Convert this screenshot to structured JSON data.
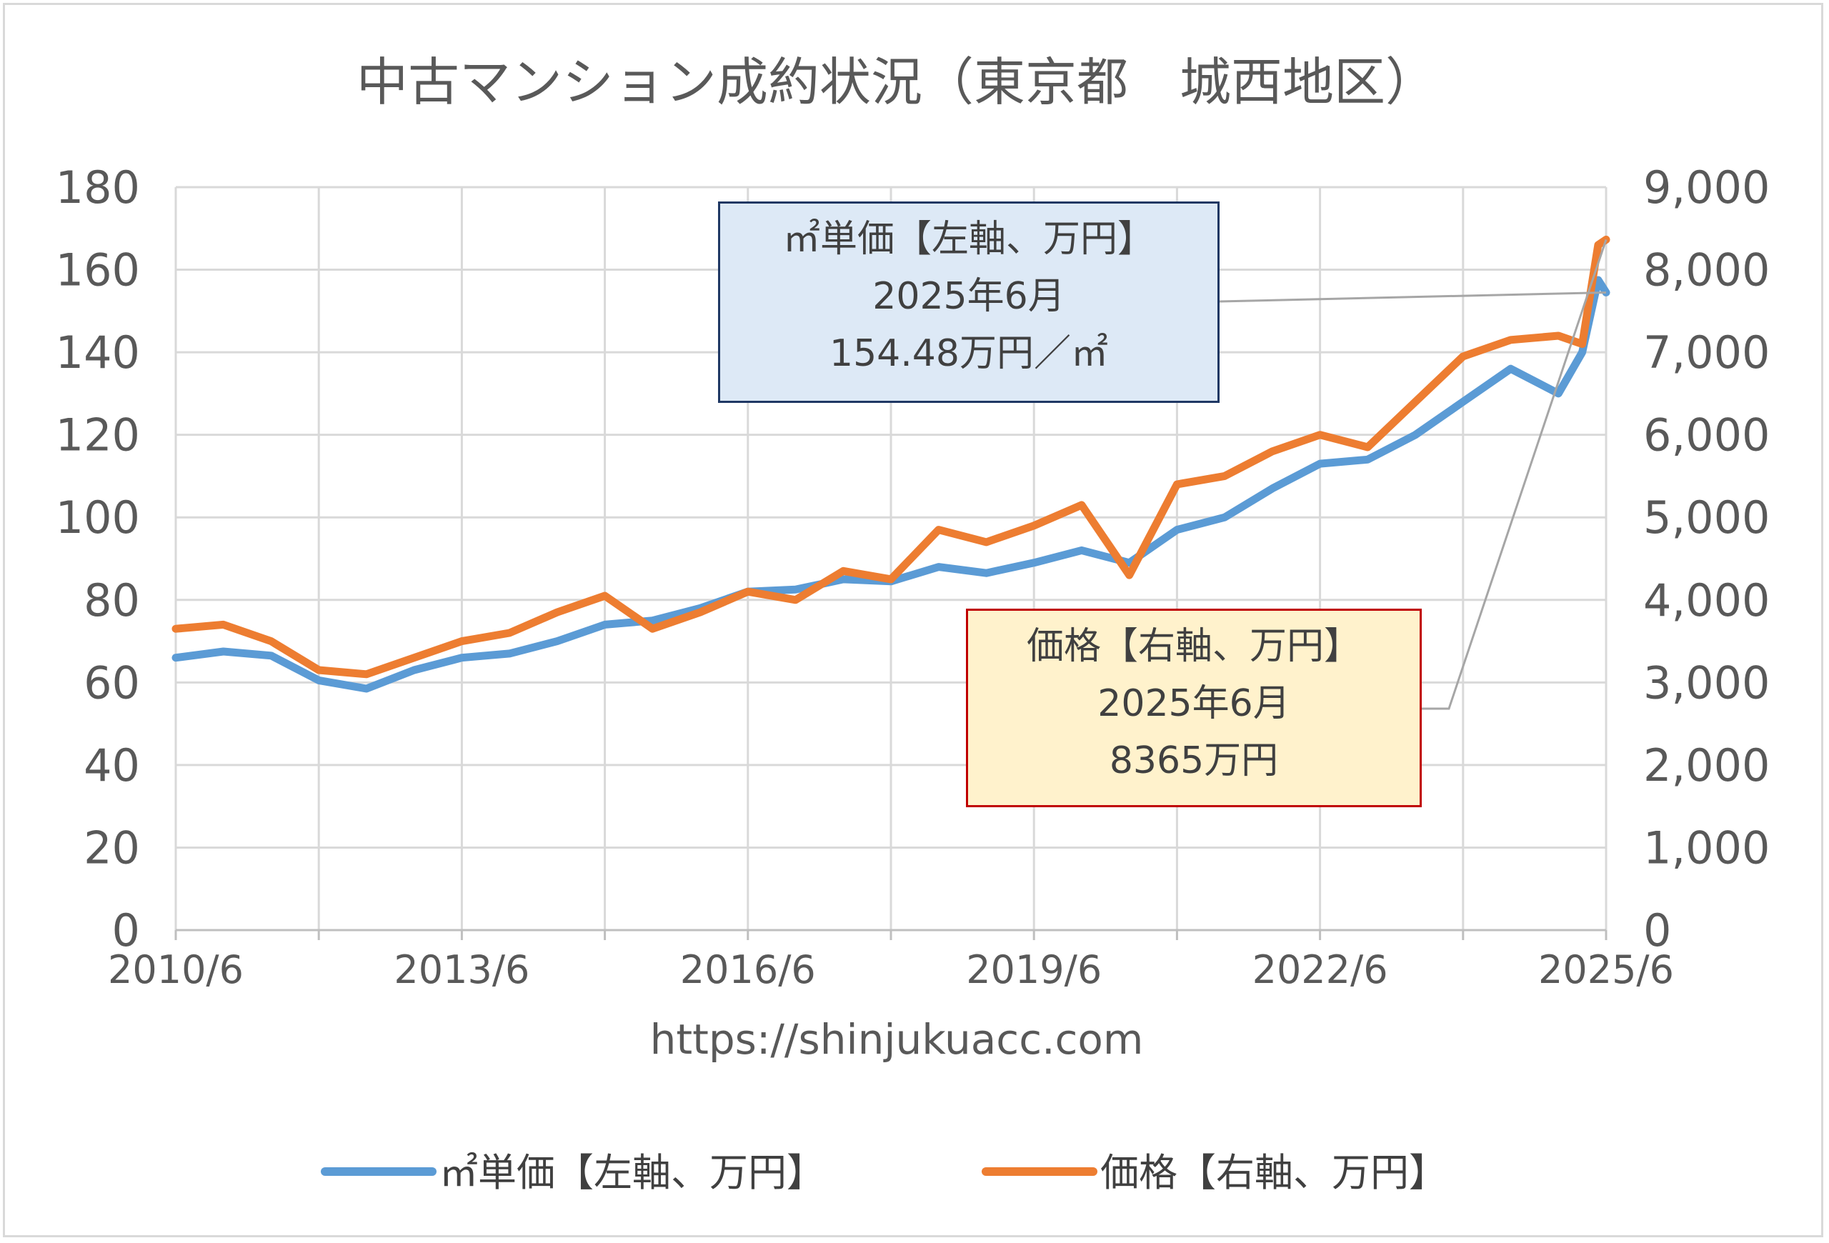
{
  "chart_data": {
    "type": "line",
    "title": "中古マンション成約状況（東京都　城西地区）",
    "watermark": "https://shinjukuacc.com",
    "x_tick_labels": [
      "2010/6",
      "2013/6",
      "2016/6",
      "2019/6",
      "2022/6",
      "2025/6"
    ],
    "x_range": [
      "2010/6",
      "2025/6"
    ],
    "y_left": {
      "ylim": [
        0,
        180
      ],
      "ticks": [
        "0",
        "20",
        "40",
        "60",
        "80",
        "100",
        "120",
        "140",
        "160",
        "180"
      ]
    },
    "y_right": {
      "ylim": [
        0,
        9000
      ],
      "ticks": [
        "0",
        "1,000",
        "2,000",
        "3,000",
        "4,000",
        "5,000",
        "6,000",
        "7,000",
        "8,000",
        "9,000"
      ]
    },
    "grid": true,
    "legend_position": "bottom",
    "series": [
      {
        "name": "㎡単価【左軸、万円】",
        "axis": "left",
        "color": "#5b9bd5",
        "points": [
          [
            "2010/6",
            66
          ],
          [
            "2010/12",
            67.5
          ],
          [
            "2011/6",
            66.5
          ],
          [
            "2011/12",
            60.5
          ],
          [
            "2012/6",
            58.5
          ],
          [
            "2012/12",
            63
          ],
          [
            "2013/6",
            66
          ],
          [
            "2013/12",
            67
          ],
          [
            "2014/6",
            70
          ],
          [
            "2014/12",
            74
          ],
          [
            "2015/6",
            75
          ],
          [
            "2015/12",
            78
          ],
          [
            "2016/6",
            82
          ],
          [
            "2016/12",
            82.5
          ],
          [
            "2017/6",
            85
          ],
          [
            "2017/12",
            84.5
          ],
          [
            "2018/6",
            88
          ],
          [
            "2018/12",
            86.5
          ],
          [
            "2019/6",
            89
          ],
          [
            "2019/12",
            92
          ],
          [
            "2020/6",
            89
          ],
          [
            "2020/12",
            97
          ],
          [
            "2021/6",
            100
          ],
          [
            "2021/12",
            107
          ],
          [
            "2022/6",
            113
          ],
          [
            "2022/12",
            114
          ],
          [
            "2023/6",
            120
          ],
          [
            "2023/12",
            128
          ],
          [
            "2024/6",
            136
          ],
          [
            "2024/12",
            130
          ],
          [
            "2025/3",
            140
          ],
          [
            "2025/5",
            157.5
          ],
          [
            "2025/6",
            154.48
          ]
        ]
      },
      {
        "name": "価格【右軸、万円】",
        "axis": "right",
        "color": "#ed7d31",
        "points": [
          [
            "2010/6",
            3650
          ],
          [
            "2010/12",
            3700
          ],
          [
            "2011/6",
            3500
          ],
          [
            "2011/12",
            3150
          ],
          [
            "2012/6",
            3100
          ],
          [
            "2012/12",
            3300
          ],
          [
            "2013/6",
            3500
          ],
          [
            "2013/12",
            3600
          ],
          [
            "2014/6",
            3850
          ],
          [
            "2014/12",
            4050
          ],
          [
            "2015/6",
            3650
          ],
          [
            "2015/12",
            3850
          ],
          [
            "2016/6",
            4100
          ],
          [
            "2016/12",
            4000
          ],
          [
            "2017/6",
            4350
          ],
          [
            "2017/12",
            4250
          ],
          [
            "2018/6",
            4850
          ],
          [
            "2018/12",
            4700
          ],
          [
            "2019/6",
            4900
          ],
          [
            "2019/12",
            5150
          ],
          [
            "2020/6",
            4300
          ],
          [
            "2020/12",
            5400
          ],
          [
            "2021/6",
            5500
          ],
          [
            "2021/12",
            5800
          ],
          [
            "2022/6",
            6000
          ],
          [
            "2022/12",
            5850
          ],
          [
            "2023/6",
            6400
          ],
          [
            "2023/12",
            6950
          ],
          [
            "2024/6",
            7150
          ],
          [
            "2024/12",
            7200
          ],
          [
            "2025/3",
            7100
          ],
          [
            "2025/5",
            8300
          ],
          [
            "2025/6",
            8365
          ]
        ]
      }
    ],
    "annotations": [
      {
        "series": "㎡単価【左軸、万円】",
        "lines": [
          "㎡単価【左軸、万円】",
          "2025年6月",
          "154.48万円／㎡"
        ]
      },
      {
        "series": "価格【右軸、万円】",
        "lines": [
          "価格【右軸、万円】",
          "2025年6月",
          "8365万円"
        ]
      }
    ]
  }
}
